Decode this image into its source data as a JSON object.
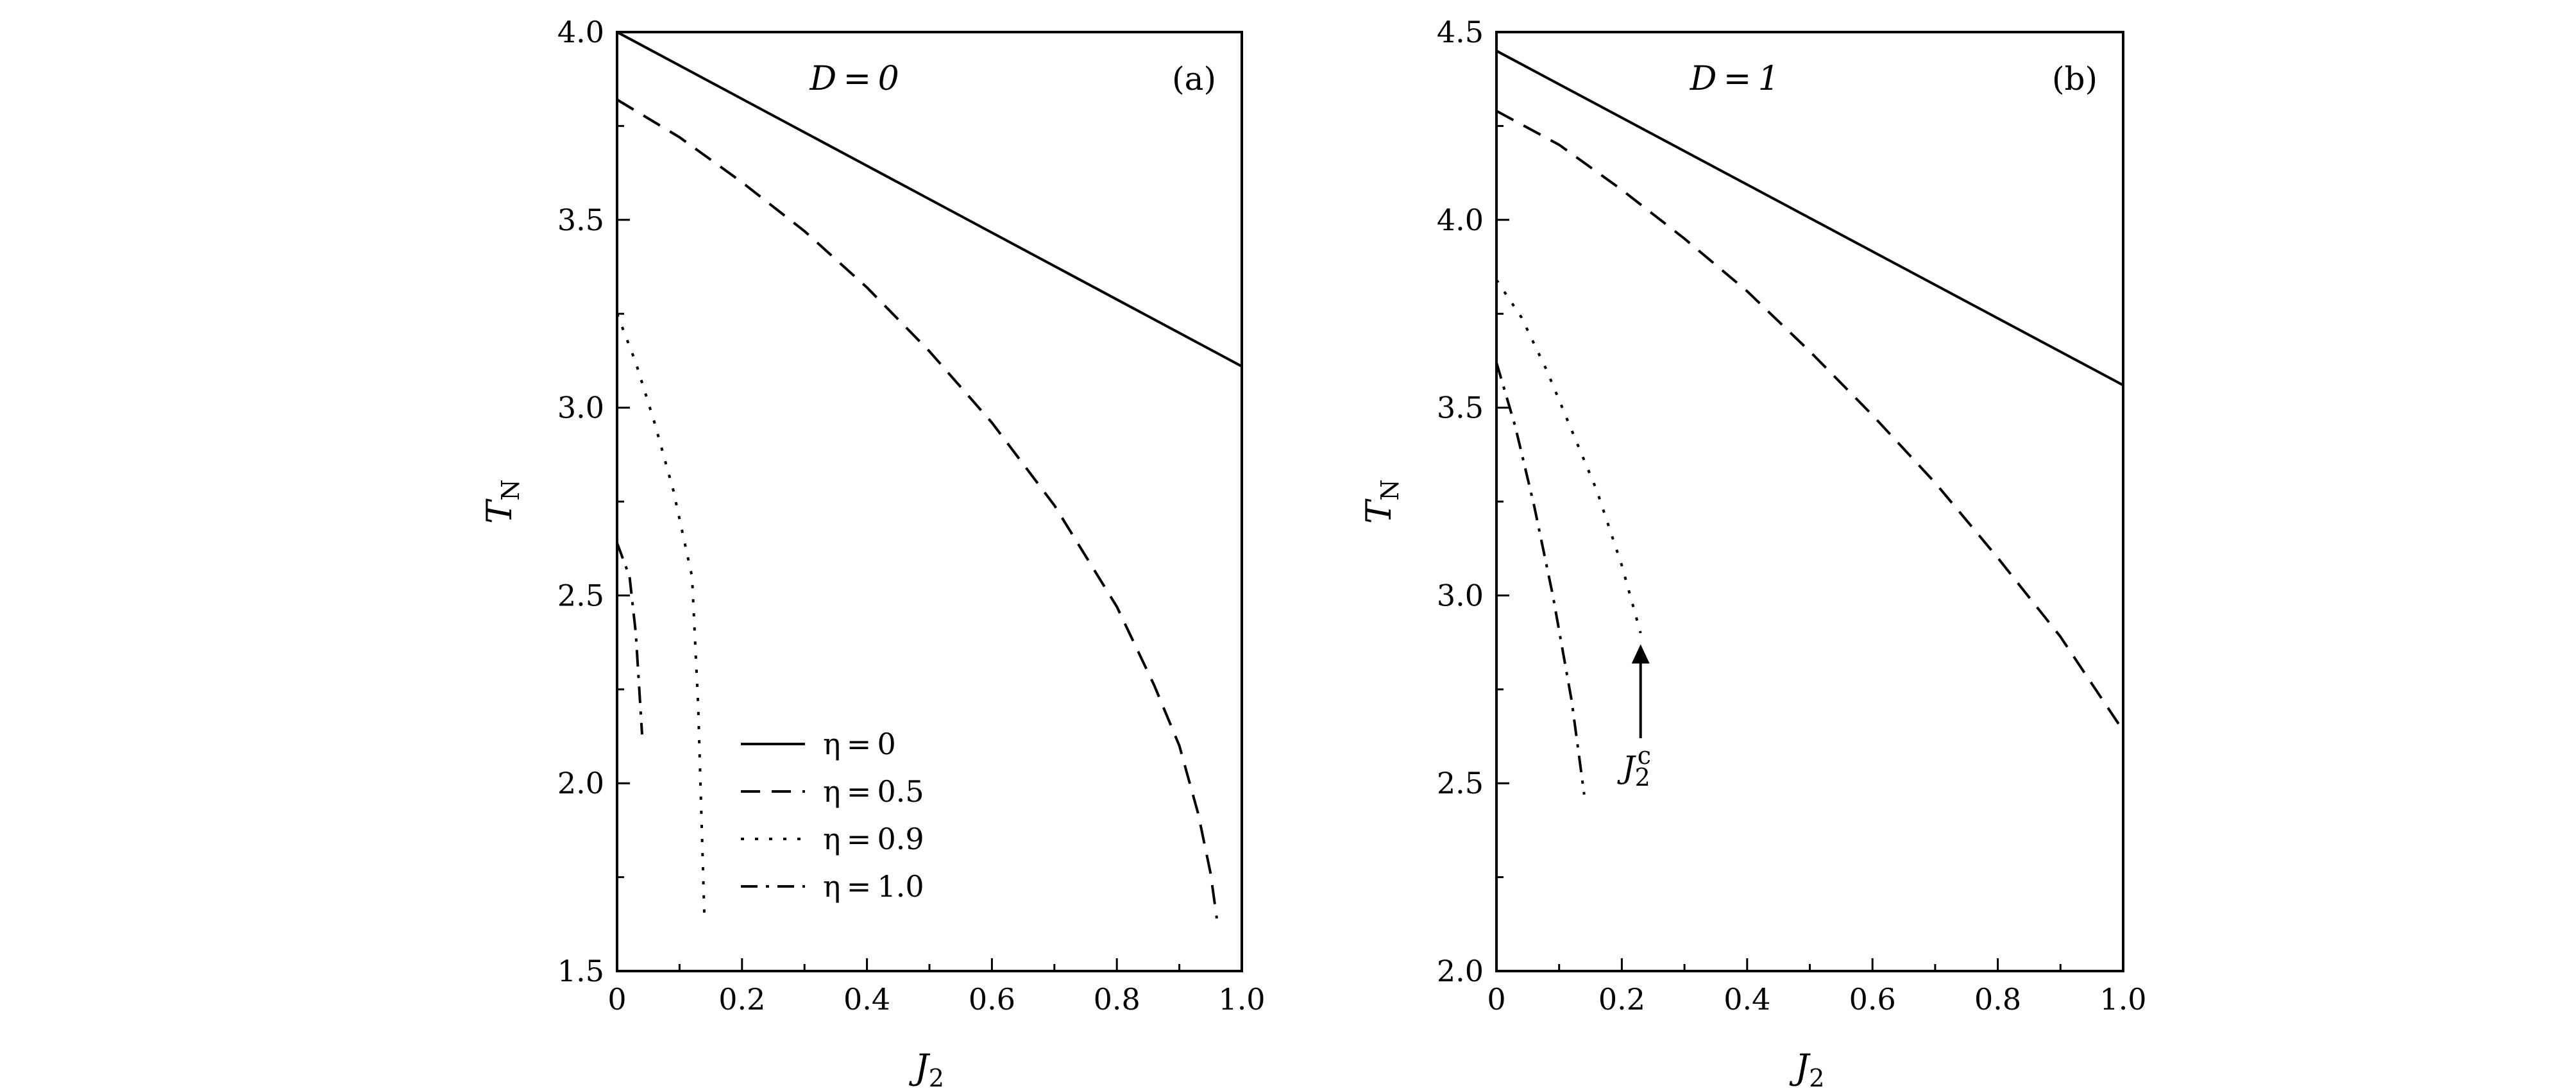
{
  "chart_data": [
    {
      "type": "line",
      "panel_label": "(a)",
      "param_label": "D = 0",
      "xlabel": "J",
      "xlabel_sub": "2",
      "ylabel": "T",
      "ylabel_sub": "N",
      "xlim": [
        0,
        1.0
      ],
      "ylim": [
        1.5,
        4.0
      ],
      "xticks": [
        0,
        0.2,
        0.4,
        0.6,
        0.8,
        1.0
      ],
      "xtick_labels": [
        "0",
        "0.2",
        "0.4",
        "0.6",
        "0.8",
        "1.0"
      ],
      "yticks": [
        1.5,
        2.0,
        2.5,
        3.0,
        3.5,
        4.0
      ],
      "ytick_labels": [
        "1.5",
        "2.0",
        "2.5",
        "3.0",
        "3.5",
        "4.0"
      ],
      "legend_position": "bottom-left",
      "series": [
        {
          "name": "η = 0",
          "style": "solid",
          "x": [
            0,
            1.0
          ],
          "y": [
            4.0,
            3.11
          ]
        },
        {
          "name": "η = 0.5",
          "style": "dashed",
          "x": [
            0,
            0.1,
            0.2,
            0.3,
            0.4,
            0.5,
            0.6,
            0.7,
            0.8,
            0.86,
            0.9,
            0.93,
            0.95,
            0.96
          ],
          "y": [
            3.82,
            3.72,
            3.6,
            3.47,
            3.32,
            3.15,
            2.96,
            2.74,
            2.47,
            2.26,
            2.1,
            1.92,
            1.76,
            1.64
          ]
        },
        {
          "name": "η = 0.9",
          "style": "dotted",
          "x": [
            0,
            0.03,
            0.06,
            0.09,
            0.12,
            0.13,
            0.14
          ],
          "y": [
            3.25,
            3.12,
            2.96,
            2.78,
            2.55,
            2.2,
            1.63
          ]
        },
        {
          "name": "η = 1.0",
          "style": "dashdot",
          "x": [
            0,
            0.02,
            0.03,
            0.04
          ],
          "y": [
            2.64,
            2.55,
            2.4,
            2.13
          ]
        }
      ]
    },
    {
      "type": "line",
      "panel_label": "(b)",
      "param_label": "D = 1",
      "xlabel": "J",
      "xlabel_sub": "2",
      "ylabel": "T",
      "ylabel_sub": "N",
      "xlim": [
        0,
        1.0
      ],
      "ylim": [
        2.0,
        4.5
      ],
      "xticks": [
        0,
        0.2,
        0.4,
        0.6,
        0.8,
        1.0
      ],
      "xtick_labels": [
        "0",
        "0.2",
        "0.4",
        "0.6",
        "0.8",
        "1.0"
      ],
      "yticks": [
        2.0,
        2.5,
        3.0,
        3.5,
        4.0,
        4.5
      ],
      "ytick_labels": [
        "2.0",
        "2.5",
        "3.0",
        "3.5",
        "4.0",
        "4.5"
      ],
      "annotation": {
        "text": "J",
        "sub": "2",
        "sup": "c",
        "x": 0.23,
        "arrow_from_y": 2.62,
        "arrow_to_y": 2.87
      },
      "series": [
        {
          "name": "η = 0",
          "style": "solid",
          "x": [
            0,
            1.0
          ],
          "y": [
            4.45,
            3.56
          ]
        },
        {
          "name": "η = 0.5",
          "style": "dashed",
          "x": [
            0,
            0.1,
            0.2,
            0.3,
            0.4,
            0.5,
            0.6,
            0.7,
            0.8,
            0.9,
            1.0
          ],
          "y": [
            4.29,
            4.2,
            4.08,
            3.95,
            3.81,
            3.65,
            3.48,
            3.3,
            3.1,
            2.89,
            2.64
          ]
        },
        {
          "name": "η = 0.9",
          "style": "dotted",
          "x": [
            0,
            0.04,
            0.08,
            0.12,
            0.16,
            0.2,
            0.23
          ],
          "y": [
            3.84,
            3.74,
            3.6,
            3.44,
            3.28,
            3.08,
            2.9
          ]
        },
        {
          "name": "η = 1.0",
          "style": "dashdot",
          "x": [
            0,
            0.03,
            0.06,
            0.09,
            0.12,
            0.14
          ],
          "y": [
            3.62,
            3.45,
            3.24,
            3.0,
            2.72,
            2.47
          ]
        }
      ]
    }
  ]
}
